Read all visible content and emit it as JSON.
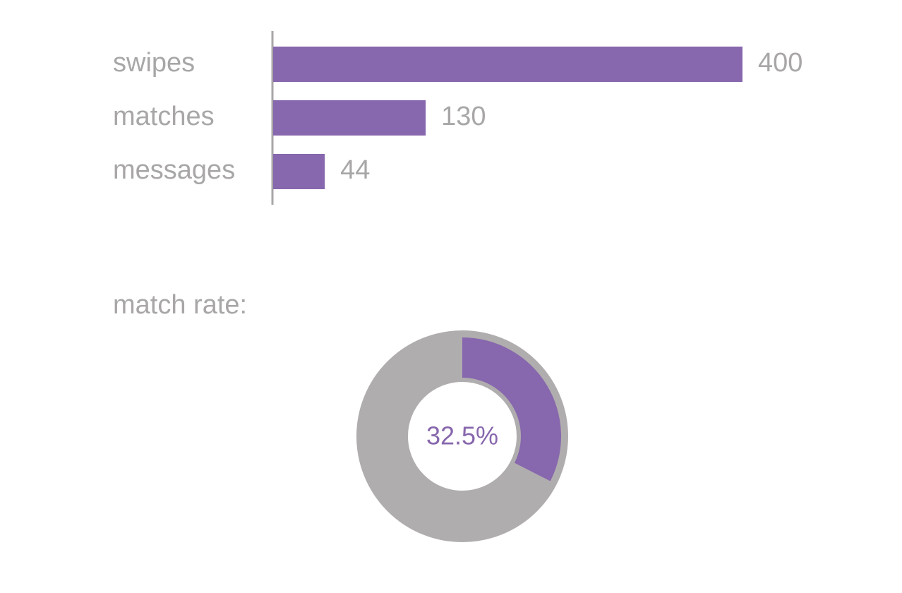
{
  "chart_data": [
    {
      "type": "bar",
      "orientation": "horizontal",
      "categories": [
        "swipes",
        "matches",
        "messages"
      ],
      "values": [
        400,
        130,
        44
      ],
      "color": "#8767ad"
    },
    {
      "type": "pie",
      "title": "match rate:",
      "values": [
        32.5
      ],
      "value_labels": [
        "32.5%"
      ],
      "color": "#8767ad"
    }
  ]
}
